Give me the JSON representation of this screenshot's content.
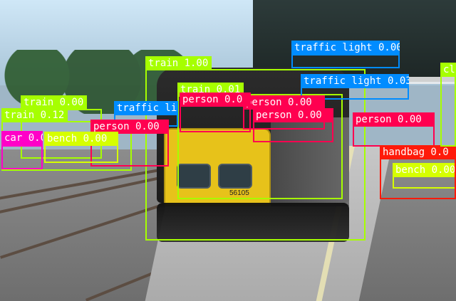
{
  "detections": [
    {
      "class": "train",
      "score": 1.0,
      "label": "train 1.00",
      "box_color": "#a6ff00",
      "label_bg": "#a6ff00",
      "label_fg": "#ffffff"
    },
    {
      "class": "train",
      "score": 0.01,
      "label": "train 0.01",
      "box_color": "#a6ff00",
      "label_bg": "#a6ff00",
      "label_fg": "#ffffff"
    },
    {
      "class": "train",
      "score": 0.0,
      "label": "train 0.00",
      "box_color": "#a6ff00",
      "label_bg": "#a6ff00",
      "label_fg": "#ffffff"
    },
    {
      "class": "train",
      "score": 0.12,
      "label": "train 0.12",
      "box_color": "#a6ff00",
      "label_bg": "#a6ff00",
      "label_fg": "#ffffff"
    },
    {
      "class": "traffic light",
      "score": 0.0,
      "label": "traffic light 0.00",
      "box_color": "#008cff",
      "label_bg": "#008cff",
      "label_fg": "#ffffff"
    },
    {
      "class": "traffic light",
      "score": 0.03,
      "label": "traffic light 0.03",
      "box_color": "#008cff",
      "label_bg": "#008cff",
      "label_fg": "#ffffff"
    },
    {
      "class": "traffic light",
      "score": null,
      "label": "traffic li",
      "box_color": "#008cff",
      "label_bg": "#008cff",
      "label_fg": "#ffffff"
    },
    {
      "class": "person",
      "score": 0.0,
      "label": "person 0.00",
      "box_color": "#ff0050",
      "label_bg": "#ff0050",
      "label_fg": "#ffffff"
    },
    {
      "class": "person",
      "score": 0.0,
      "label": "person 0.00",
      "box_color": "#ff0050",
      "label_bg": "#ff0050",
      "label_fg": "#ffffff"
    },
    {
      "class": "person",
      "score": 0.0,
      "label": "person 0.00",
      "box_color": "#ff0050",
      "label_bg": "#ff0050",
      "label_fg": "#ffffff"
    },
    {
      "class": "person",
      "score": 0.0,
      "label": "person 0.00",
      "box_color": "#ff0050",
      "label_bg": "#ff0050",
      "label_fg": "#ffffff"
    },
    {
      "class": "person",
      "score": null,
      "label": "person 0.0",
      "box_color": "#ff0050",
      "label_bg": "#ff0050",
      "label_fg": "#ffffff"
    },
    {
      "class": "car",
      "score": null,
      "label": "car 0.0",
      "box_color": "#ff00c8",
      "label_bg": "#ff00c8",
      "label_fg": "#ffffff"
    },
    {
      "class": "bench",
      "score": 0.0,
      "label": "bench 0.00",
      "box_color": "#d6ff00",
      "label_bg": "#d6ff00",
      "label_fg": "#ffffff"
    },
    {
      "class": "bench",
      "score": 0.0,
      "label": "bench 0.00",
      "box_color": "#d6ff00",
      "label_bg": "#d6ff00",
      "label_fg": "#ffffff"
    },
    {
      "class": "handbag",
      "score": null,
      "label": "handbag 0.0",
      "box_color": "#ff1a0a",
      "label_bg": "#ff1a0a",
      "label_fg": "#ffffff"
    },
    {
      "class": "unknown",
      "score": null,
      "label": "cl",
      "box_color": "#a6ff00",
      "label_bg": "#a6ff00",
      "label_fg": "#ffffff"
    }
  ],
  "scene_text": {
    "train_number": "56105"
  }
}
